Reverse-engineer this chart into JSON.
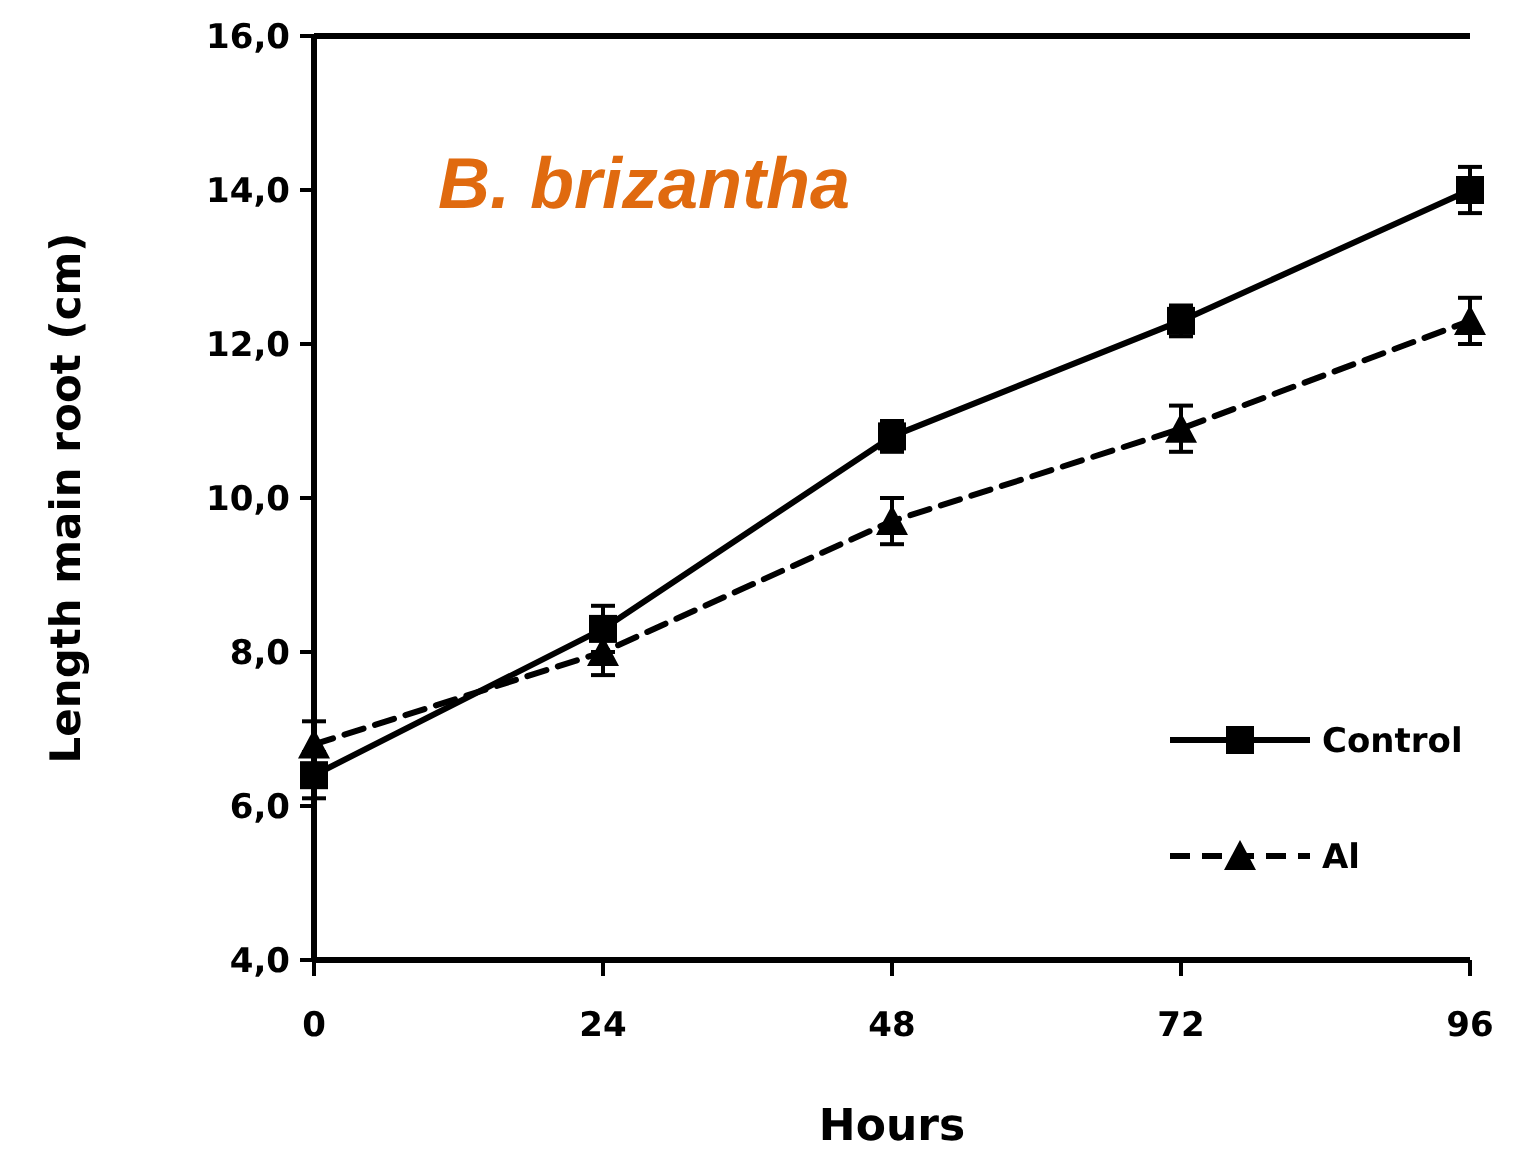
{
  "chart_data": {
    "type": "line",
    "xlabel": "Hours",
    "ylabel": "Length main root (cm)",
    "annotations": [
      "B. brizantha"
    ],
    "x": [
      0,
      24,
      48,
      72,
      96
    ],
    "xlim": [
      0,
      96
    ],
    "xticks": [
      0,
      24,
      48,
      72,
      96
    ],
    "ylim": [
      4,
      16
    ],
    "yticks": [
      {
        "value": 4,
        "label": "4,0"
      },
      {
        "value": 6,
        "label": "6,0"
      },
      {
        "value": 8,
        "label": "8,0"
      },
      {
        "value": 10,
        "label": "10,0"
      },
      {
        "value": 12,
        "label": "12,0"
      },
      {
        "value": 14,
        "label": "14,0"
      },
      {
        "value": 16,
        "label": "16,0"
      }
    ],
    "legend": "bottom right",
    "grid": false,
    "series": [
      {
        "name": "Control",
        "color": "#000000",
        "marker": "square",
        "line_style": "solid",
        "values": [
          6.4,
          8.3,
          10.8,
          12.3,
          14.0
        ],
        "errors": [
          0.3,
          0.3,
          0.2,
          0.2,
          0.3
        ]
      },
      {
        "name": "Al",
        "color": "#000000",
        "marker": "triangle",
        "line_style": "dashed",
        "values": [
          6.8,
          8.0,
          9.7,
          10.9,
          12.3
        ],
        "errors": [
          0.3,
          0.3,
          0.3,
          0.3,
          0.3
        ]
      }
    ]
  }
}
